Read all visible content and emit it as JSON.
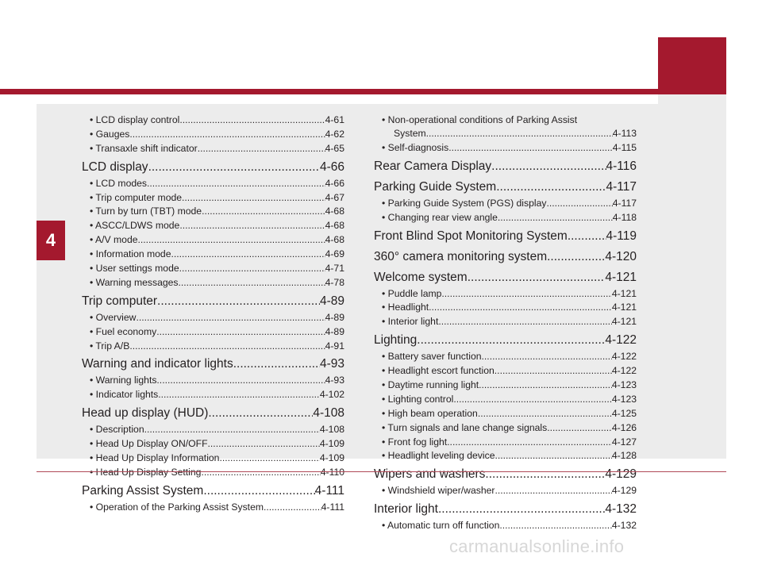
{
  "chapter_number": "4",
  "watermark": "carmanualsonline.info",
  "left_column": [
    {
      "type": "sub",
      "label": "• LCD display control",
      "page": "4-61"
    },
    {
      "type": "sub",
      "label": "• Gauges",
      "page": "4-62"
    },
    {
      "type": "sub",
      "label": "• Transaxle shift indicator",
      "page": "4-65"
    },
    {
      "type": "section",
      "label": "LCD display",
      "page": "4-66"
    },
    {
      "type": "sub",
      "label": "• LCD modes",
      "page": "4-66"
    },
    {
      "type": "sub",
      "label": "• Trip computer mode",
      "page": "4-67"
    },
    {
      "type": "sub",
      "label": "• Turn by turn (TBT) mode",
      "page": "4-68"
    },
    {
      "type": "sub",
      "label": "• ASCC/LDWS mode",
      "page": "4-68"
    },
    {
      "type": "sub",
      "label": "• A/V mode",
      "page": "4-68"
    },
    {
      "type": "sub",
      "label": "• Information mode",
      "page": "4-69"
    },
    {
      "type": "sub",
      "label": "• User settings mode",
      "page": "4-71"
    },
    {
      "type": "sub",
      "label": "• Warning messages",
      "page": "4-78"
    },
    {
      "type": "section",
      "label": "Trip computer",
      "page": "4-89"
    },
    {
      "type": "sub",
      "label": "• Overview",
      "page": "4-89"
    },
    {
      "type": "sub",
      "label": "• Fuel economy",
      "page": "4-89"
    },
    {
      "type": "sub",
      "label": "• Trip A/B",
      "page": "4-91"
    },
    {
      "type": "section",
      "label": "Warning and indicator lights",
      "page": "4-93"
    },
    {
      "type": "sub",
      "label": "• Warning lights",
      "page": "4-93"
    },
    {
      "type": "sub",
      "label": "• Indicator lights",
      "page": "4-102"
    },
    {
      "type": "section",
      "label": "Head up display (HUD)",
      "page": "4-108"
    },
    {
      "type": "sub",
      "label": "• Description",
      "page": "4-108"
    },
    {
      "type": "sub",
      "label": "• Head Up Display ON/OFF",
      "page": "4-109"
    },
    {
      "type": "sub",
      "label": "• Head Up Display Information",
      "page": "4-109"
    },
    {
      "type": "sub",
      "label": "• Head Up Display Setting",
      "page": "4-110"
    },
    {
      "type": "section",
      "label": "Parking Assist System",
      "page": "4-111"
    },
    {
      "type": "sub",
      "label": "• Operation of the Parking Assist System",
      "page": "4-111"
    }
  ],
  "right_column": [
    {
      "type": "plain",
      "label": "• Non-operational conditions of Parking Assist"
    },
    {
      "type": "cont",
      "label": "System",
      "page": "4-113"
    },
    {
      "type": "sub",
      "label": "• Self-diagnosis",
      "page": "4-115"
    },
    {
      "type": "section",
      "label": "Rear Camera Display",
      "page": "4-116"
    },
    {
      "type": "section",
      "label": "Parking Guide System",
      "page": "4-117"
    },
    {
      "type": "sub",
      "label": "• Parking Guide System (PGS) display",
      "page": "4-117"
    },
    {
      "type": "sub",
      "label": "• Changing rear view angle",
      "page": "4-118"
    },
    {
      "type": "section",
      "label": "Front Blind Spot Monitoring System",
      "page": "4-119"
    },
    {
      "type": "section",
      "label": "360° camera monitoring system",
      "page": "4-120"
    },
    {
      "type": "section",
      "label": "Welcome system",
      "page": "4-121"
    },
    {
      "type": "sub",
      "label": "• Puddle lamp",
      "page": "4-121"
    },
    {
      "type": "sub",
      "label": "• Headlight",
      "page": "4-121"
    },
    {
      "type": "sub",
      "label": "• Interior light",
      "page": "4-121"
    },
    {
      "type": "section",
      "label": "Lighting",
      "page": "4-122"
    },
    {
      "type": "sub",
      "label": "• Battery saver function",
      "page": "4-122"
    },
    {
      "type": "sub",
      "label": "• Headlight escort function",
      "page": "4-122"
    },
    {
      "type": "sub",
      "label": "• Daytime running light",
      "page": "4-123"
    },
    {
      "type": "sub",
      "label": "• Lighting control",
      "page": "4-123"
    },
    {
      "type": "sub",
      "label": "• High beam operation",
      "page": "4-125"
    },
    {
      "type": "sub",
      "label": "• Turn signals and lane change signals",
      "page": "4-126"
    },
    {
      "type": "sub",
      "label": "• Front fog light",
      "page": "4-127"
    },
    {
      "type": "sub",
      "label": "• Headlight leveling device",
      "page": "4-128"
    },
    {
      "type": "section",
      "label": "Wipers and washers",
      "page": "4-129"
    },
    {
      "type": "sub",
      "label": "• Windshield wiper/washer",
      "page": "4-129"
    },
    {
      "type": "section",
      "label": "Interior light",
      "page": "4-132"
    },
    {
      "type": "sub",
      "label": "• Automatic turn off function",
      "page": "4-132"
    }
  ]
}
